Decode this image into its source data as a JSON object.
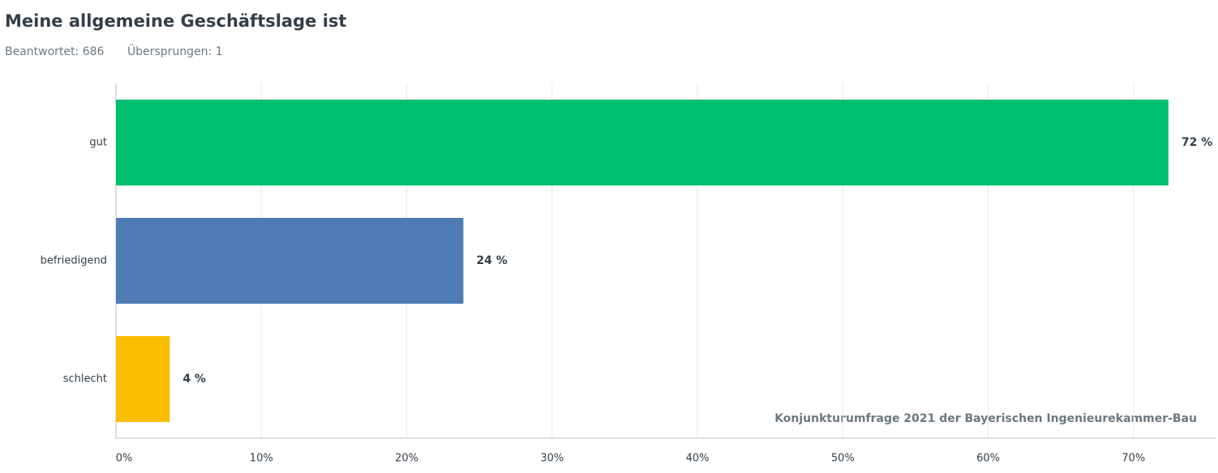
{
  "chart_data": {
    "type": "hbar",
    "title": "Meine allgemeine Geschäftslage ist",
    "answered": "Beantwortet: 686",
    "skipped": "Übersprungen: 1",
    "annotation": "Konjunkturumfrage 2021 der Bayerischen Ingenieurekammer-Bau",
    "categories": [
      "gut",
      "befriedigend",
      "schlecht"
    ],
    "values": [
      72.4,
      23.9,
      3.7
    ],
    "value_labels": [
      "72 %",
      "24 %",
      "4 %"
    ],
    "colors": [
      "#00bf6f",
      "#507cb6",
      "#f9be00"
    ],
    "xlim": [
      0,
      75.7
    ],
    "xticks": [
      {
        "value": 0,
        "label": "0%"
      },
      {
        "value": 10,
        "label": "10%"
      },
      {
        "value": 20,
        "label": "20%"
      },
      {
        "value": 30,
        "label": "30%"
      },
      {
        "value": 40,
        "label": "40%"
      },
      {
        "value": 50,
        "label": "50%"
      },
      {
        "value": 60,
        "label": "60%"
      },
      {
        "value": 70,
        "label": "70%"
      }
    ],
    "grid": true
  }
}
